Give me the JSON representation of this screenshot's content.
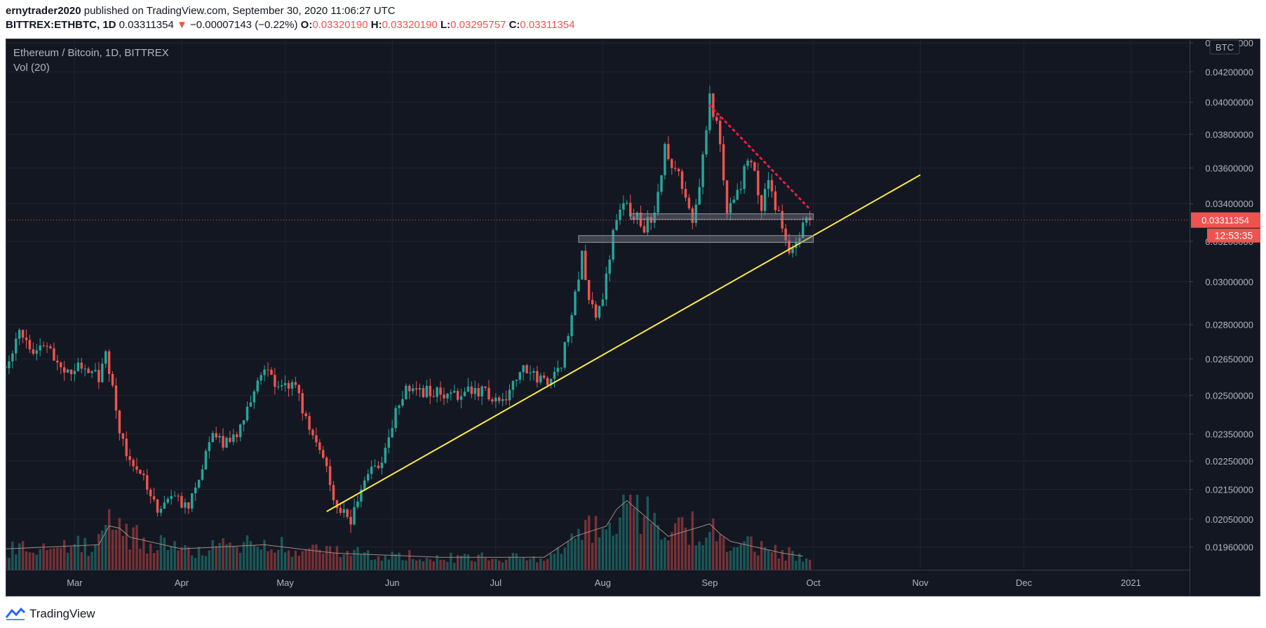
{
  "header": {
    "author": "ernytrader2020",
    "published_text": "published on TradingView.com, September 30, 2020 11:06:27 UTC",
    "symbol": "BITTREX:ETHBTC, 1D",
    "last": "0.03311354",
    "change": "−0.00007143 (−0.22%)",
    "o_label": "O:",
    "o_value": "0.03320190",
    "h_label": "H:",
    "h_value": "0.03320190",
    "l_label": "L:",
    "l_value": "0.03295757",
    "c_label": "C:",
    "c_value": "0.03311354"
  },
  "legend": {
    "title": "Ethereum / Bitcoin, 1D, BITTREX",
    "volume": "Vol (20)"
  },
  "price_scale": {
    "currency": "BTC",
    "last_price_label": "0.03311354",
    "countdown": "12:53:35"
  },
  "footer": {
    "brand": "TradingView"
  },
  "colors": {
    "background": "#131722",
    "up": "#26a69a",
    "down": "#ef5350",
    "trendline": "#ffeb3b",
    "resistance": "#ff1744",
    "zone": "#787b86",
    "text": "#b2b5be",
    "grid": "#1f2430"
  },
  "chart_data": {
    "type": "candlestick",
    "symbol": "ETHBTC",
    "interval": "1D",
    "log_scale": true,
    "x_range": [
      "2020-02-10",
      "2021-01-18"
    ],
    "y_range": [
      0.0189,
      0.0443
    ],
    "x_ticks": [
      {
        "date": "2020-03-01",
        "label": "Mar"
      },
      {
        "date": "2020-04-01",
        "label": "Apr"
      },
      {
        "date": "2020-05-01",
        "label": "May"
      },
      {
        "date": "2020-06-01",
        "label": "Jun"
      },
      {
        "date": "2020-07-01",
        "label": "Jul"
      },
      {
        "date": "2020-08-01",
        "label": "Aug"
      },
      {
        "date": "2020-09-01",
        "label": "Sep"
      },
      {
        "date": "2020-10-01",
        "label": "Oct"
      },
      {
        "date": "2020-11-01",
        "label": "Nov"
      },
      {
        "date": "2020-12-01",
        "label": "Dec"
      },
      {
        "date": "2021-01-01",
        "label": "2021"
      }
    ],
    "y_ticks": [
      {
        "value": 0.0196,
        "label": "0.01960000"
      },
      {
        "value": 0.0205,
        "label": "0.02050000"
      },
      {
        "value": 0.0215,
        "label": "0.02150000"
      },
      {
        "value": 0.0225,
        "label": "0.02250000"
      },
      {
        "value": 0.0235,
        "label": "0.02350000"
      },
      {
        "value": 0.025,
        "label": "0.02500000"
      },
      {
        "value": 0.0265,
        "label": "0.02650000"
      },
      {
        "value": 0.028,
        "label": "0.02800000"
      },
      {
        "value": 0.03,
        "label": "0.03000000"
      },
      {
        "value": 0.032,
        "label": "0.03200000"
      },
      {
        "value": 0.034,
        "label": "0.03400000"
      },
      {
        "value": 0.036,
        "label": "0.03600000"
      },
      {
        "value": 0.038,
        "label": "0.03800000"
      },
      {
        "value": 0.04,
        "label": "0.04000000"
      },
      {
        "value": 0.042,
        "label": "0.04200000"
      },
      {
        "value": 0.044,
        "label": "0.04400000"
      }
    ],
    "close_path": [
      [
        "2020-02-10",
        0.0262
      ],
      [
        "2020-02-14",
        0.0276
      ],
      [
        "2020-02-18",
        0.027
      ],
      [
        "2020-02-22",
        0.0272
      ],
      [
        "2020-02-27",
        0.0259
      ],
      [
        "2020-03-04",
        0.0262
      ],
      [
        "2020-03-08",
        0.0258
      ],
      [
        "2020-03-10",
        0.0268
      ],
      [
        "2020-03-13",
        0.0243
      ],
      [
        "2020-03-16",
        0.0226
      ],
      [
        "2020-03-20",
        0.0222
      ],
      [
        "2020-03-25",
        0.0209
      ],
      [
        "2020-03-29",
        0.0212
      ],
      [
        "2020-04-03",
        0.021
      ],
      [
        "2020-04-06",
        0.0218
      ],
      [
        "2020-04-09",
        0.0233
      ],
      [
        "2020-04-13",
        0.0232
      ],
      [
        "2020-04-17",
        0.0236
      ],
      [
        "2020-04-20",
        0.0246
      ],
      [
        "2020-04-25",
        0.026
      ],
      [
        "2020-04-29",
        0.0254
      ],
      [
        "2020-05-03",
        0.0255
      ],
      [
        "2020-05-06",
        0.0245
      ],
      [
        "2020-05-09",
        0.0236
      ],
      [
        "2020-05-12",
        0.0228
      ],
      [
        "2020-05-15",
        0.021
      ],
      [
        "2020-05-20",
        0.0205
      ],
      [
        "2020-05-25",
        0.022
      ],
      [
        "2020-05-29",
        0.0226
      ],
      [
        "2020-06-02",
        0.0243
      ],
      [
        "2020-06-05",
        0.0253
      ],
      [
        "2020-06-10",
        0.0252
      ],
      [
        "2020-06-16",
        0.025
      ],
      [
        "2020-06-21",
        0.025
      ],
      [
        "2020-06-25",
        0.0253
      ],
      [
        "2020-06-30",
        0.0249
      ],
      [
        "2020-07-04",
        0.025
      ],
      [
        "2020-07-08",
        0.026
      ],
      [
        "2020-07-13",
        0.0258
      ],
      [
        "2020-07-17",
        0.0255
      ],
      [
        "2020-07-20",
        0.0262
      ],
      [
        "2020-07-23",
        0.0284
      ],
      [
        "2020-07-26",
        0.0312
      ],
      [
        "2020-07-28",
        0.0294
      ],
      [
        "2020-07-30",
        0.0285
      ],
      [
        "2020-08-01",
        0.029
      ],
      [
        "2020-08-04",
        0.0323
      ],
      [
        "2020-08-07",
        0.0342
      ],
      [
        "2020-08-10",
        0.0334
      ],
      [
        "2020-08-13",
        0.0327
      ],
      [
        "2020-08-16",
        0.0334
      ],
      [
        "2020-08-19",
        0.0372
      ],
      [
        "2020-08-22",
        0.0358
      ],
      [
        "2020-08-25",
        0.0347
      ],
      [
        "2020-08-27",
        0.0332
      ],
      [
        "2020-08-29",
        0.0349
      ],
      [
        "2020-08-31",
        0.0382
      ],
      [
        "2020-09-01",
        0.0402
      ],
      [
        "2020-09-04",
        0.0377
      ],
      [
        "2020-09-06",
        0.0336
      ],
      [
        "2020-09-09",
        0.0345
      ],
      [
        "2020-09-12",
        0.0365
      ],
      [
        "2020-09-14",
        0.0355
      ],
      [
        "2020-09-16",
        0.0338
      ],
      [
        "2020-09-18",
        0.0354
      ],
      [
        "2020-09-20",
        0.034
      ],
      [
        "2020-09-22",
        0.0326
      ],
      [
        "2020-09-24",
        0.0316
      ],
      [
        "2020-09-26",
        0.0322
      ],
      [
        "2020-09-28",
        0.0328
      ],
      [
        "2020-09-30",
        0.03311354
      ]
    ],
    "volume_max": 18,
    "volume_path": [
      [
        "2020-02-10",
        5
      ],
      [
        "2020-03-08",
        6
      ],
      [
        "2020-03-12",
        12
      ],
      [
        "2020-03-16",
        8
      ],
      [
        "2020-04-01",
        5
      ],
      [
        "2020-04-25",
        6
      ],
      [
        "2020-05-15",
        4
      ],
      [
        "2020-06-15",
        3
      ],
      [
        "2020-07-15",
        3
      ],
      [
        "2020-07-24",
        8
      ],
      [
        "2020-08-04",
        11
      ],
      [
        "2020-08-06",
        18
      ],
      [
        "2020-08-20",
        8
      ],
      [
        "2020-09-01",
        11
      ],
      [
        "2020-09-06",
        7
      ],
      [
        "2020-09-22",
        4
      ],
      [
        "2020-09-30",
        3
      ]
    ],
    "drawings": [
      {
        "type": "trendline",
        "color": "#ffeb3b",
        "from": [
          "2020-05-13",
          0.02075
        ],
        "to": [
          "2020-11-01",
          0.0356
        ]
      },
      {
        "type": "dotted-trendline",
        "color": "#ff1744",
        "from": [
          "2020-09-01",
          0.0398
        ],
        "to": [
          "2020-09-30",
          0.0337
        ]
      },
      {
        "type": "zone",
        "from": [
          "2020-08-09",
          0.03315
        ],
        "to": [
          "2020-10-01",
          0.03345
        ]
      },
      {
        "type": "zone",
        "from": [
          "2020-07-25",
          0.03195
        ],
        "to": [
          "2020-10-01",
          0.0323
        ]
      }
    ]
  }
}
